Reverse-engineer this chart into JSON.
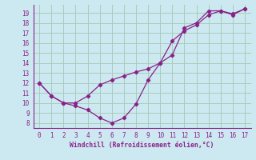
{
  "xlabel": "Windchill (Refroidissement éolien,°C)",
  "background_color": "#cce8f0",
  "grid_color": "#aaccbb",
  "line_color": "#882288",
  "spine_color": "#882288",
  "xlim": [
    -0.5,
    17.5
  ],
  "ylim": [
    7.5,
    19.8
  ],
  "xticks": [
    0,
    1,
    2,
    3,
    4,
    5,
    6,
    7,
    8,
    9,
    10,
    11,
    12,
    13,
    14,
    15,
    16,
    17
  ],
  "yticks": [
    8,
    9,
    10,
    11,
    12,
    13,
    14,
    15,
    16,
    17,
    18,
    19
  ],
  "line1_x": [
    0,
    1,
    2,
    3,
    4,
    5,
    6,
    7,
    8,
    9,
    10,
    11,
    12,
    13,
    14,
    15,
    16,
    17
  ],
  "line1_y": [
    12.0,
    10.7,
    10.0,
    9.7,
    9.3,
    8.5,
    8.0,
    8.5,
    9.9,
    12.3,
    14.0,
    14.8,
    17.5,
    18.0,
    19.2,
    19.2,
    18.8,
    19.4
  ],
  "line2_x": [
    0,
    1,
    2,
    3,
    4,
    5,
    6,
    7,
    8,
    9,
    10,
    11,
    12,
    13,
    14,
    15,
    16,
    17
  ],
  "line2_y": [
    12.0,
    10.7,
    10.0,
    10.0,
    10.7,
    11.8,
    12.3,
    12.7,
    13.1,
    13.4,
    14.0,
    16.2,
    17.2,
    17.8,
    18.8,
    19.2,
    18.9,
    19.4
  ]
}
